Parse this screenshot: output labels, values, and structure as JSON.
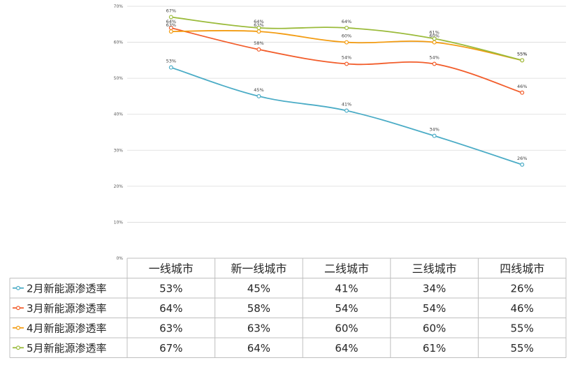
{
  "chart_data": {
    "type": "line",
    "categories": [
      "一线城市",
      "新一线城市",
      "二线城市",
      "三线城市",
      "四线城市"
    ],
    "ylim": [
      0,
      70
    ],
    "yticks": [
      "0%",
      "10%",
      "20%",
      "30%",
      "40%",
      "50%",
      "60%",
      "70%"
    ],
    "grid": true,
    "legend": "data-table",
    "series": [
      {
        "name": "2月新能源渗透率",
        "color": "#4BACC6",
        "values": [
          53,
          45,
          41,
          34,
          26
        ],
        "labels": [
          "53%",
          "45%",
          "41%",
          "34%",
          "26%"
        ]
      },
      {
        "name": "3月新能源渗透率",
        "color": "#F25D2B",
        "values": [
          64,
          58,
          54,
          54,
          46
        ],
        "labels": [
          "64%",
          "58%",
          "54%",
          "54%",
          "46%"
        ]
      },
      {
        "name": "4月新能源渗透率",
        "color": "#F39C12",
        "values": [
          63,
          63,
          60,
          60,
          55
        ],
        "labels": [
          "63%",
          "63%",
          "60%",
          "60%",
          "55%"
        ]
      },
      {
        "name": "5月新能源渗透率",
        "color": "#9BBB3B",
        "values": [
          67,
          64,
          64,
          61,
          55
        ],
        "labels": [
          "67%",
          "64%",
          "64%",
          "61%",
          "55%"
        ]
      }
    ]
  }
}
